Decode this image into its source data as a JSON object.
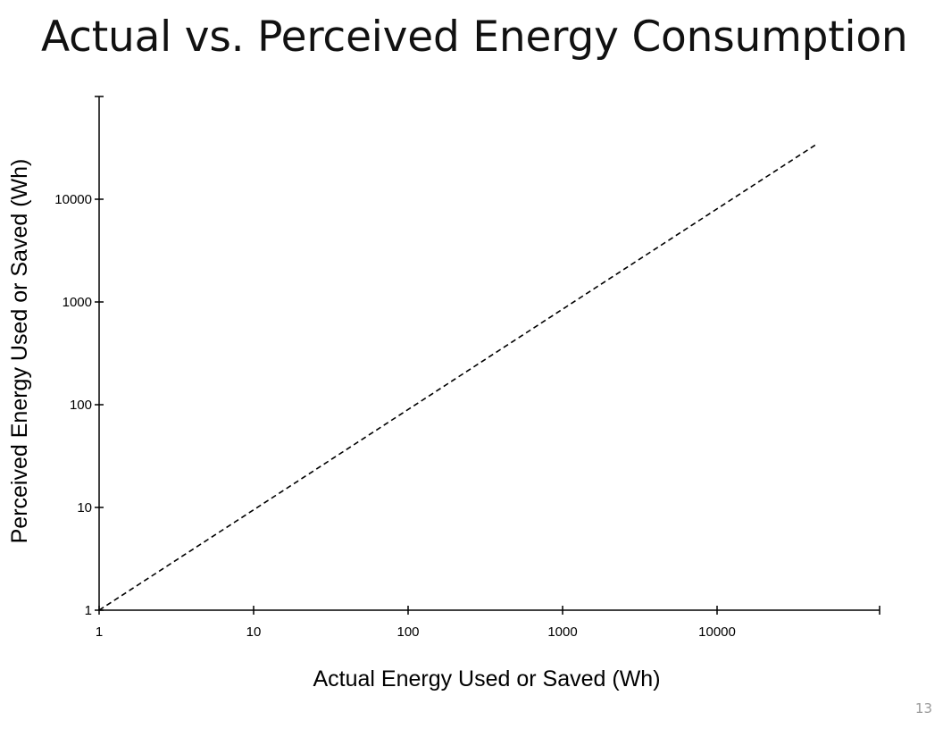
{
  "slide": {
    "title": "Actual vs. Perceived Energy Consumption",
    "page_number": "13"
  },
  "chart_data": {
    "type": "line",
    "title": "",
    "xlabel": "Actual Energy Used or Saved (Wh)",
    "ylabel": "Perceived Energy Used or Saved (Wh)",
    "x_scale": "log",
    "y_scale": "log",
    "xlim": [
      1,
      100000
    ],
    "ylim": [
      1,
      100000
    ],
    "x_ticks": [
      1,
      10,
      100,
      1000,
      10000
    ],
    "y_ticks": [
      1,
      10,
      100,
      1000,
      10000
    ],
    "x_tick_labels": [
      "1",
      "10",
      "100",
      "1000",
      "10000"
    ],
    "y_tick_labels": [
      "1",
      "10",
      "100",
      "1000",
      "10000"
    ],
    "grid": false,
    "legend": "none",
    "series": [
      {
        "style": "dashed",
        "color": "#000000",
        "x": [
          1,
          45000
        ],
        "y": [
          1,
          35000
        ]
      }
    ]
  }
}
